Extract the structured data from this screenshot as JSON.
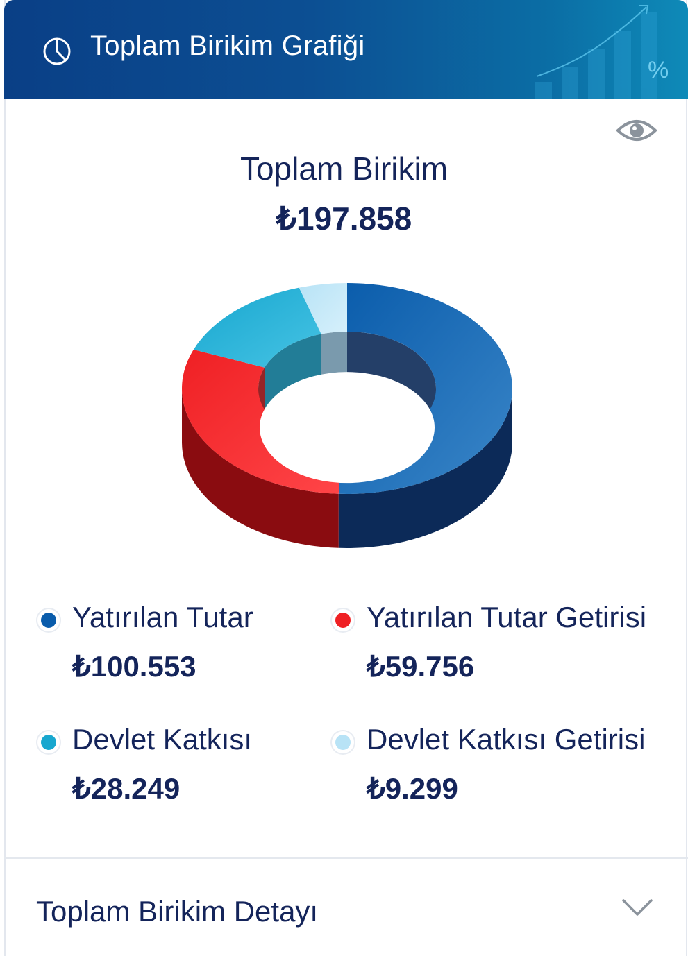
{
  "header": {
    "title": "Toplam Birikim Grafiği",
    "icon": "pie-chart-icon"
  },
  "summary": {
    "label": "Toplam Birikim",
    "value": "₺197.858",
    "visibility_icon": "eye-icon"
  },
  "chart_data": {
    "type": "pie",
    "donut": true,
    "categories": [
      "Yatırılan Tutar",
      "Yatırılan Tutar Getirisi",
      "Devlet Katkısı",
      "Devlet Katkısı Getirisi"
    ],
    "values": [
      100553,
      59756,
      28249,
      9299
    ],
    "colors": [
      "#0a5cab",
      "#ef2024",
      "#18a7cf",
      "#b8e3f6"
    ]
  },
  "legend": [
    {
      "name": "Yatırılan Tutar",
      "value": "₺100.553",
      "color": "#0a5cab"
    },
    {
      "name": "Yatırılan Tutar Getirisi",
      "value": "₺59.756",
      "color": "#ef2024"
    },
    {
      "name": "Devlet Katkısı",
      "value": "₺28.249",
      "color": "#18a7cf"
    },
    {
      "name": "Devlet Katkısı Getirisi",
      "value": "₺9.299",
      "color": "#b8e3f6"
    }
  ],
  "detail": {
    "title": "Toplam Birikim Detayı",
    "expand_icon": "chevron-down-icon"
  }
}
